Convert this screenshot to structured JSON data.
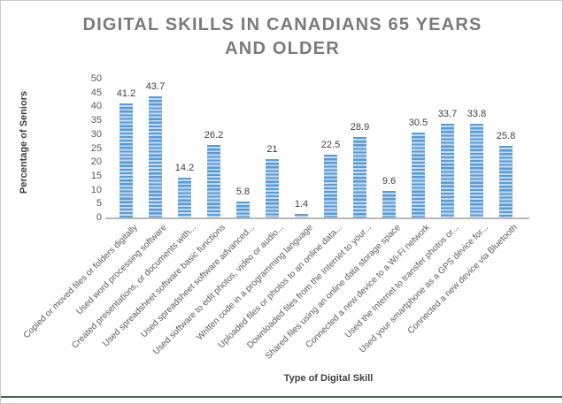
{
  "title": {
    "line1": "DIGITAL SKILLS IN CANADIANS 65 YEARS",
    "line2": "AND OLDER"
  },
  "chart_data": {
    "type": "bar",
    "title": "DIGITAL SKILLS IN CANADIANS 65 YEARS AND OLDER",
    "xlabel": "Type of Digital Skill",
    "ylabel": "Percentage of Seniors",
    "ylim": [
      0,
      50
    ],
    "ytick_step": 5,
    "grid": false,
    "legend": false,
    "bar_color": "#5b9bd5",
    "bar_stripe_light": "#c2daf1",
    "categories": [
      "Copied or moved files or folders digitally",
      "Used word processing software",
      "Created presentations, or documents with...",
      "Used spreadsheet software basic functions",
      "Used spreadsheet software advanced...",
      "Used software to edit photos, video or audio...",
      "Written code in a programming language",
      "Uploaded files or photos to an online data...",
      "Downloaded files from the Internet to your...",
      "Shared files using an online data storage space",
      "Connected a new device to a Wi-Fi network",
      "Used the Internet to transfer photos or...",
      "Used your smartphone as a GPS device for...",
      "Connected a new device via Bluetooth"
    ],
    "values": [
      41.2,
      43.7,
      14.2,
      26.2,
      5.8,
      21,
      1.4,
      22.5,
      28.9,
      9.6,
      30.5,
      33.7,
      33.8,
      25.8
    ]
  }
}
